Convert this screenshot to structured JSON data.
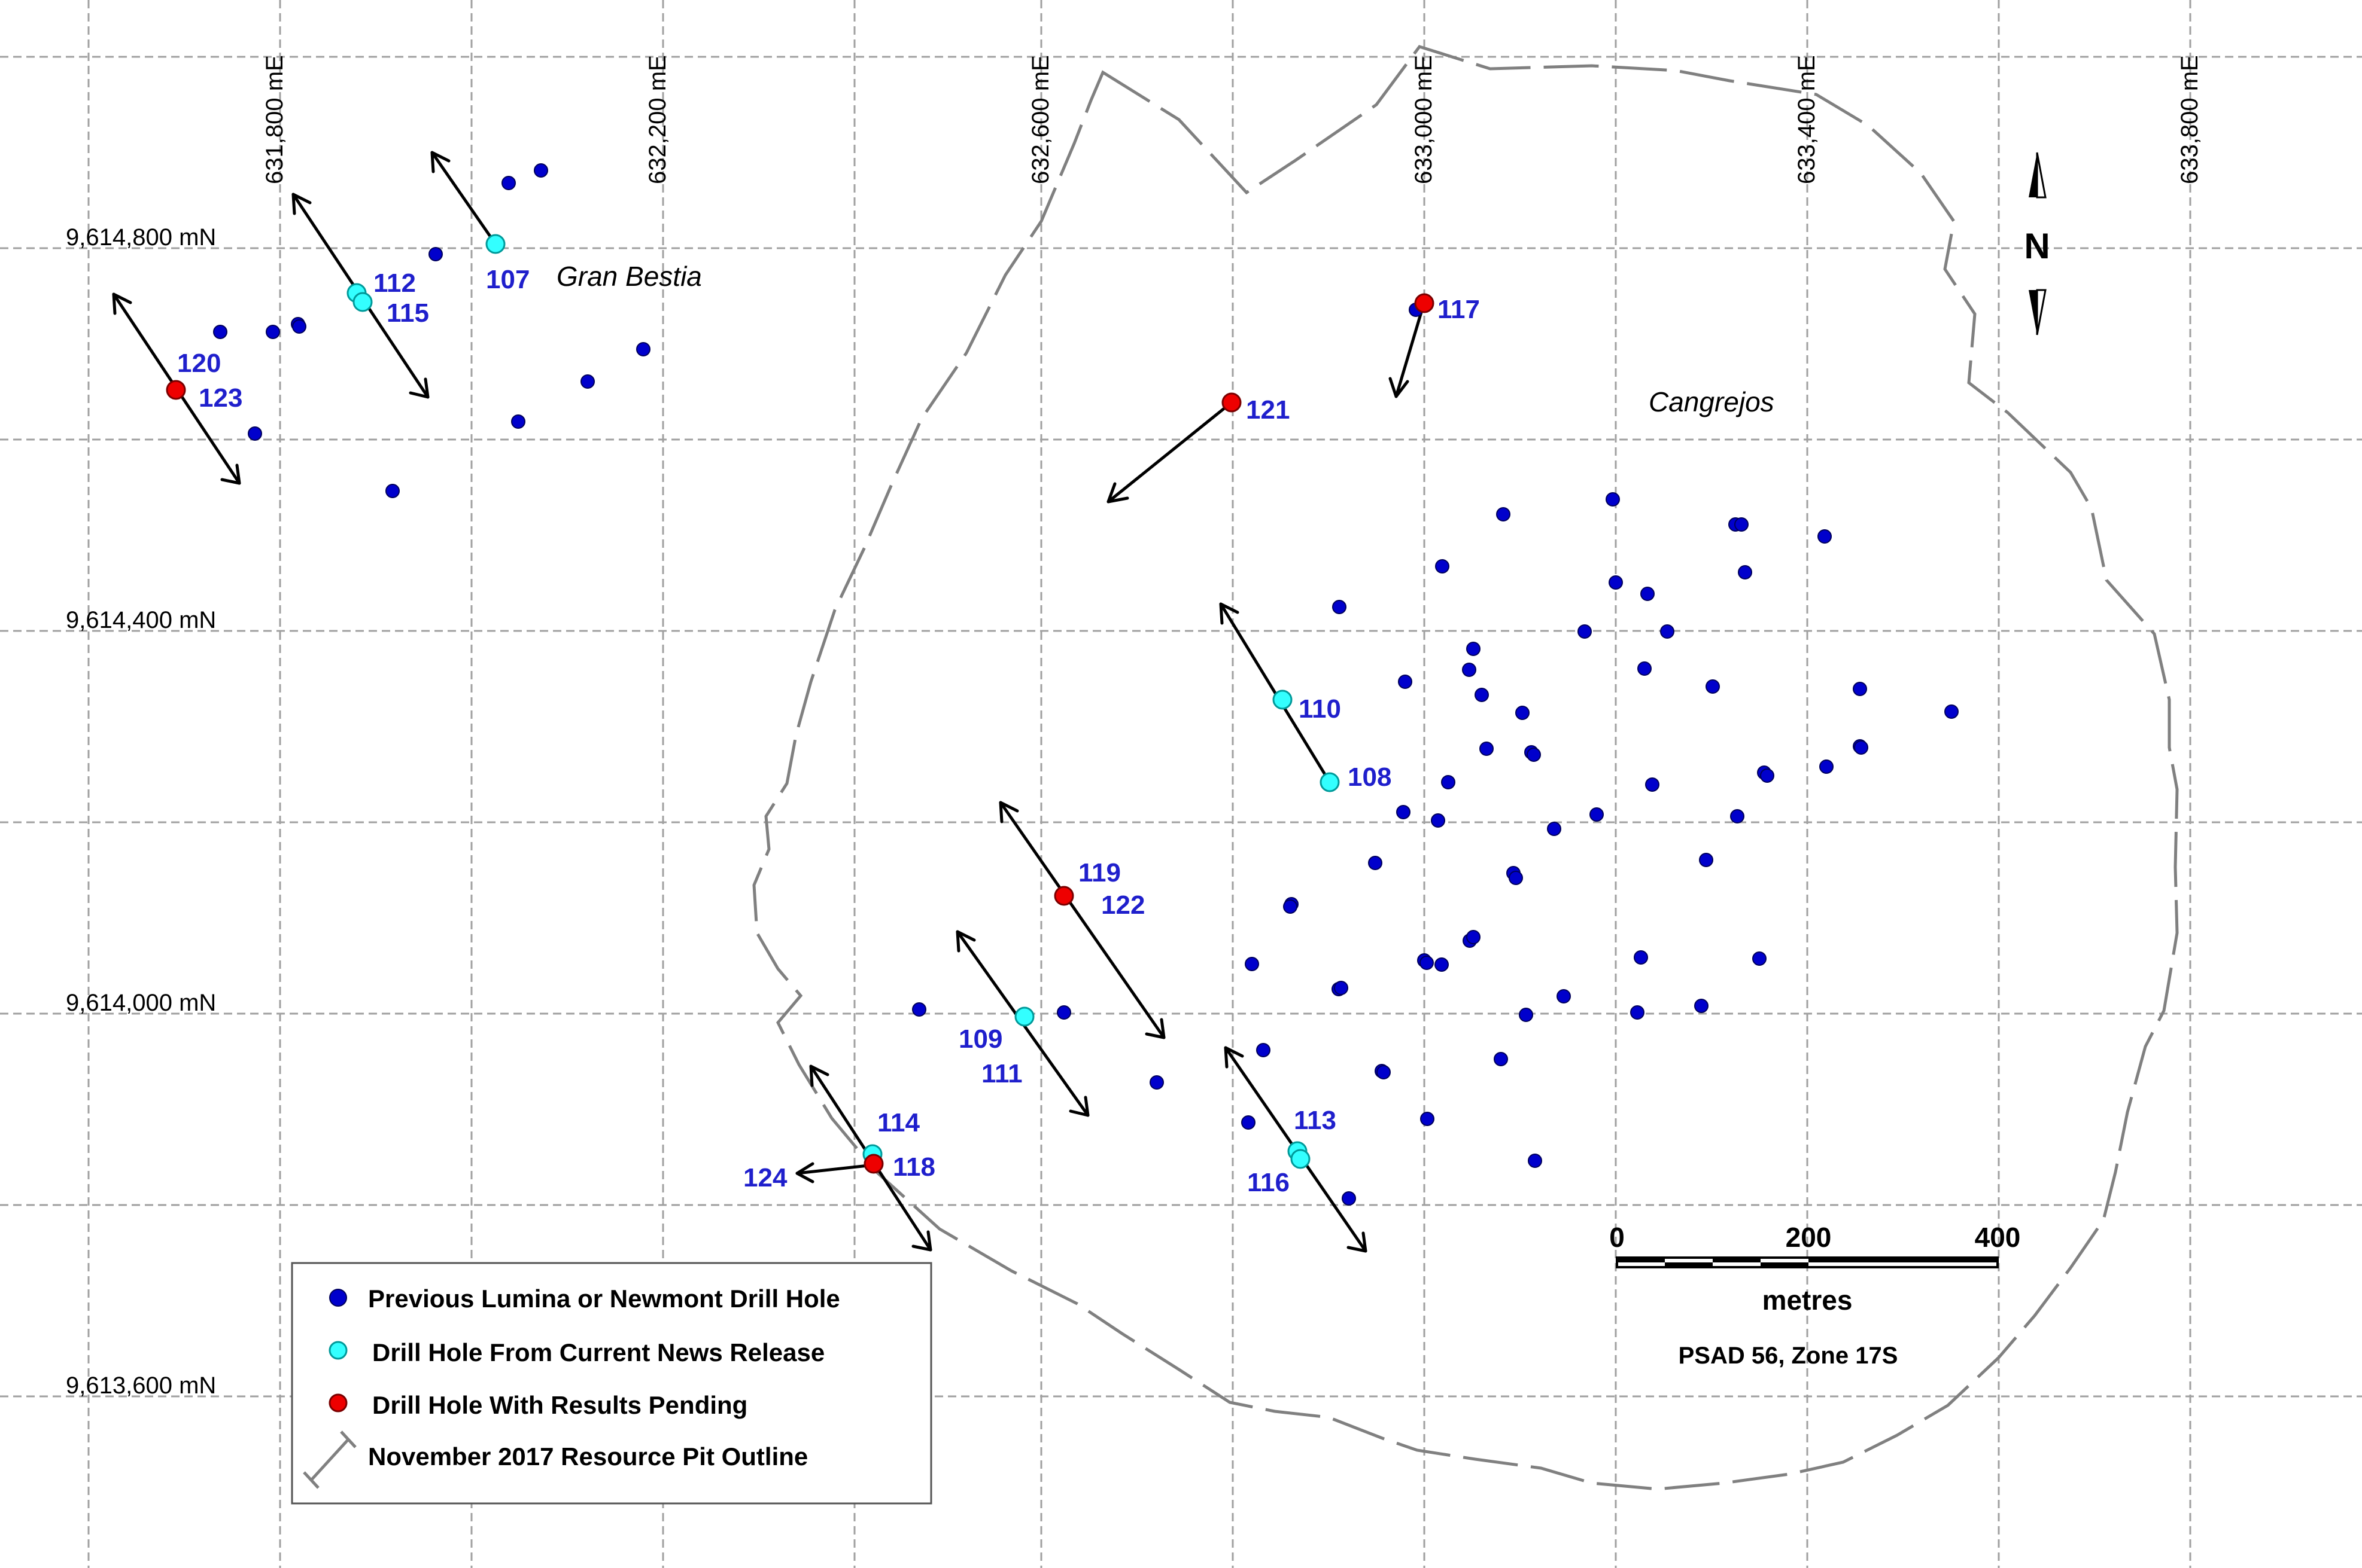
{
  "grid": {
    "eastings": [
      "631,800 mE",
      "632,200 mE",
      "632,600 mE",
      "633,000 mE",
      "633,400 mE",
      "633,800 mE"
    ],
    "northings": [
      "9,614,800 mN",
      "9,614,400 mN",
      "9,614,000 mN",
      "9,613,600 mN"
    ]
  },
  "places": [
    "Gran Bestia",
    "Cangrejos"
  ],
  "hole_labels": [
    "107",
    "112",
    "115",
    "120",
    "123",
    "117",
    "121",
    "110",
    "108",
    "119",
    "122",
    "109",
    "111",
    "114",
    "118",
    "124",
    "113",
    "116"
  ],
  "north_arrow": {
    "label": "N"
  },
  "scale_bar": {
    "ticks": [
      "0",
      "200",
      "400"
    ],
    "units": "metres",
    "datum": "PSAD 56, Zone 17S"
  },
  "legend": {
    "items": [
      {
        "label": "Previous Lumina or Newmont Drill Hole",
        "symbol": "blue-dot",
        "color": "#0000cc"
      },
      {
        "label": "Drill Hole From Current News Release",
        "symbol": "cyan-dot",
        "color": "#33ffff"
      },
      {
        "label": "Drill Hole With Results Pending",
        "symbol": "red-dot",
        "color": "#ee0000"
      },
      {
        "label": "November 2017 Resource Pit Outline",
        "symbol": "pit-outline-line",
        "color": "#808080"
      }
    ]
  },
  "colors": {
    "previous": "#0000cc",
    "current": "#33ffff",
    "pending": "#ee0000",
    "label": "#1f1fcc",
    "pit": "#808080",
    "grid": "#999999"
  }
}
